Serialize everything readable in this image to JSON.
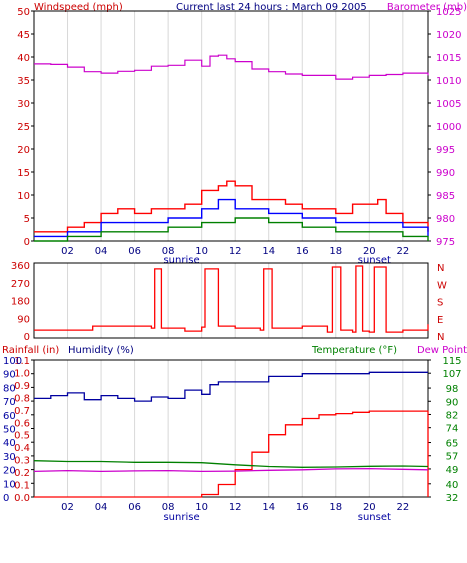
{
  "chart_data": [
    {
      "type": "line",
      "header": {
        "left": "Windspeed (mph)",
        "center": "Current last 24 hours : March 09 2005",
        "right": "Barometer (mb)"
      },
      "x_ticks": [
        "02",
        "04",
        "06",
        "08",
        "10",
        "12",
        "14",
        "16",
        "18",
        "20",
        "22"
      ],
      "x_range": [
        0,
        23.5
      ],
      "annotations": [
        {
          "text": "sunrise",
          "x": 8.8
        },
        {
          "text": "sunset",
          "x": 20.3
        }
      ],
      "left_axis": {
        "ticks": [
          "0",
          "5",
          "10",
          "15",
          "20",
          "25",
          "30",
          "35",
          "40",
          "45",
          "50"
        ],
        "range": [
          0,
          50
        ]
      },
      "right_axis": {
        "ticks": [
          "975",
          "980",
          "985",
          "990",
          "995",
          "1000",
          "1005",
          "1010",
          "1015",
          "1020",
          "1025"
        ],
        "range": [
          975,
          1025
        ]
      },
      "barometer": {
        "x": [
          0,
          1,
          2,
          3,
          4,
          5,
          6,
          7,
          8,
          9,
          10,
          10.5,
          11,
          11.5,
          12,
          13,
          14,
          15,
          16,
          17,
          18,
          19,
          20,
          21,
          22,
          23.5
        ],
        "y": [
          1013.5,
          1013.4,
          1012.8,
          1011.8,
          1011.5,
          1011.9,
          1012.1,
          1013.0,
          1013.2,
          1014.3,
          1013.0,
          1015.2,
          1015.4,
          1014.6,
          1014.0,
          1012.4,
          1011.8,
          1011.3,
          1011.0,
          1011.0,
          1010.2,
          1010.6,
          1011.0,
          1011.2,
          1011.5,
          1011.0
        ]
      },
      "wind_gust": {
        "x": [
          0,
          1,
          2,
          3,
          4,
          5,
          6,
          7,
          8,
          9,
          10,
          11,
          11.5,
          12,
          13,
          14,
          15,
          16,
          17,
          18,
          19,
          20,
          20.5,
          21,
          22,
          23.5
        ],
        "y": [
          2,
          2,
          3,
          4,
          6,
          7,
          6,
          7,
          7,
          8,
          11,
          12,
          13,
          12,
          9,
          9,
          8,
          7,
          7,
          6,
          8,
          8,
          9,
          6,
          4,
          2
        ]
      },
      "wind_avg": {
        "x": [
          0,
          2,
          4,
          6,
          8,
          10,
          11,
          12,
          14,
          16,
          18,
          20,
          22,
          23.5
        ],
        "y": [
          1,
          2,
          4,
          4,
          5,
          7,
          9,
          7,
          6,
          5,
          4,
          4,
          3,
          1
        ]
      },
      "wind_min": {
        "x": [
          0,
          2,
          4,
          6,
          8,
          10,
          12,
          14,
          16,
          18,
          20,
          22,
          23.5
        ],
        "y": [
          0,
          1,
          2,
          2,
          3,
          4,
          5,
          4,
          3,
          2,
          2,
          1,
          0
        ]
      }
    },
    {
      "type": "line",
      "x_ticks": [
        "02",
        "04",
        "06",
        "08",
        "10",
        "12",
        "14",
        "16",
        "18",
        "20",
        "22"
      ],
      "x_range": [
        0,
        23.5
      ],
      "left_axis": {
        "ticks": [
          "0",
          "90",
          "180",
          "270",
          "360"
        ],
        "range": [
          0,
          360
        ]
      },
      "right_axis": {
        "labels": [
          "N",
          "W",
          "S",
          "E",
          "N"
        ]
      },
      "wind_direction": {
        "x": [
          0,
          3,
          3.5,
          7,
          7.2,
          7.3,
          7.6,
          9,
          10,
          10.2,
          10.4,
          11,
          12,
          13.5,
          13.7,
          13.9,
          14.2,
          16,
          17.5,
          17.8,
          18.1,
          18.3,
          19,
          19.2,
          19.4,
          19.6,
          20,
          20.3,
          20.6,
          21,
          22,
          23.5
        ],
        "y": [
          30,
          30,
          50,
          40,
          340,
          340,
          40,
          25,
          45,
          340,
          340,
          50,
          40,
          30,
          340,
          340,
          40,
          50,
          20,
          350,
          350,
          30,
          20,
          355,
          355,
          25,
          20,
          350,
          350,
          20,
          30,
          60
        ]
      }
    },
    {
      "type": "line",
      "header": {
        "left": "Rainfall (in)",
        "center": "Humidity (%)",
        "right": "Temperature (°F)",
        "right2": "Dew Point"
      },
      "x_ticks": [
        "02",
        "04",
        "06",
        "08",
        "10",
        "12",
        "14",
        "16",
        "18",
        "20",
        "22"
      ],
      "x_range": [
        0,
        23.5
      ],
      "annotations": [
        {
          "text": "sunrise",
          "x": 8.8
        },
        {
          "text": "sunset",
          "x": 20.3
        }
      ],
      "left_axis": {
        "ticks": [
          "0.0",
          "0.1",
          "0.2",
          "0.3",
          "0.4",
          "0.5",
          "0.6",
          "0.7",
          "0.8",
          "0.9",
          "1.0",
          "1.1"
        ],
        "range": [
          0,
          1.1
        ]
      },
      "humidity_axis": {
        "ticks": [
          "0",
          "10",
          "20",
          "30",
          "40",
          "50",
          "60",
          "70",
          "80",
          "90",
          "100"
        ],
        "range": [
          0,
          100
        ]
      },
      "right_axis": {
        "ticks": [
          "32",
          "40",
          "49",
          "57",
          "65",
          "74",
          "82",
          "90",
          "98",
          "107",
          "115"
        ],
        "range": [
          32,
          115
        ]
      },
      "humidity": {
        "x": [
          0,
          1,
          2,
          3,
          4,
          5,
          6,
          7,
          8,
          9,
          10,
          10.5,
          11,
          12,
          14,
          16,
          18,
          20,
          22,
          23.5
        ],
        "y": [
          72,
          74,
          76,
          71,
          74,
          72,
          70,
          73,
          72,
          78,
          75,
          82,
          84,
          84,
          88,
          90,
          90,
          91,
          91,
          91
        ]
      },
      "rainfall": {
        "x": [
          0,
          9,
          10,
          11,
          12,
          13,
          14,
          15,
          16,
          17,
          18,
          19,
          20,
          21,
          22,
          23.5,
          23.5
        ],
        "y": [
          0,
          0,
          0.02,
          0.1,
          0.22,
          0.36,
          0.5,
          0.58,
          0.63,
          0.66,
          0.67,
          0.68,
          0.69,
          0.69,
          0.69,
          0.69,
          0.0
        ]
      },
      "temperature": {
        "x": [
          0,
          2,
          4,
          6,
          8,
          10,
          12,
          14,
          16,
          18,
          20,
          22,
          23.5
        ],
        "y": [
          54,
          53.5,
          53.5,
          53,
          53,
          52.8,
          51.5,
          50.5,
          50,
          50.2,
          50.6,
          50.8,
          50.5
        ]
      },
      "dew_point": {
        "x": [
          0,
          2,
          4,
          6,
          8,
          10,
          12,
          14,
          16,
          18,
          20,
          22,
          23.5
        ],
        "y": [
          47.5,
          48,
          47.5,
          47.8,
          48,
          47.5,
          47.7,
          48.2,
          48.5,
          49,
          49.2,
          48.8,
          48.5
        ]
      }
    }
  ],
  "colors": {
    "wind_gust": "#ff0000",
    "wind_avg": "#0000ff",
    "wind_min": "#008000",
    "barometer": "#cc00cc",
    "direction": "#ff0000",
    "humidity": "#0000a0",
    "rainfall": "#ff0000",
    "temperature": "#008000",
    "dew_point": "#cc00cc"
  }
}
